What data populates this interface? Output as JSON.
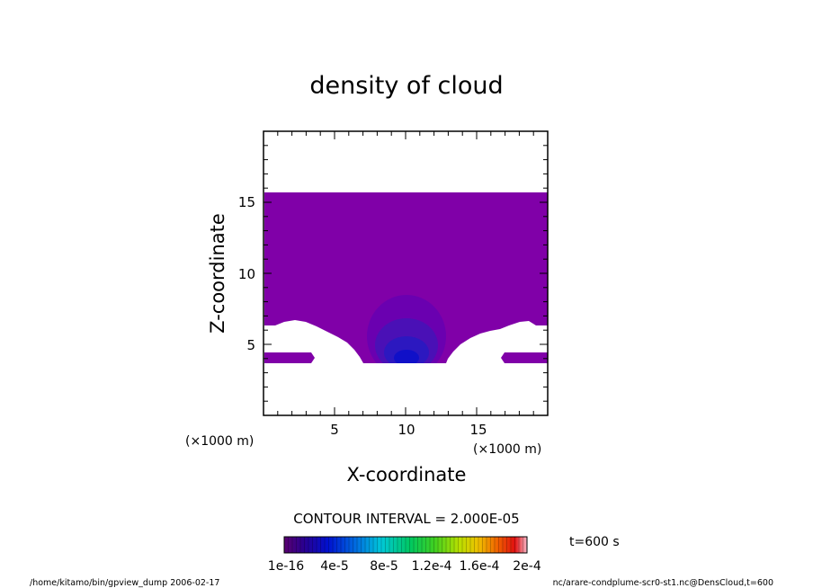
{
  "chart_data": {
    "type": "heatmap",
    "title": "density of cloud",
    "xlabel": "X-coordinate",
    "ylabel": "Z-coordinate",
    "x_unit_note": "(×1000 m)",
    "y_unit_note": "(×1000 m)",
    "xlim": [
      0,
      20
    ],
    "ylim": [
      0,
      20
    ],
    "x_ticks": [
      5,
      10,
      15
    ],
    "y_ticks": [
      5,
      10,
      15
    ],
    "contour_interval": "CONTOUR INTERVAL = 2.000E-05",
    "time_label": "t=600 s",
    "colorbar": {
      "tick_labels": [
        "1e-16",
        "4e-5",
        "8e-5",
        "1.2e-4",
        "1.6e-4",
        "2e-4"
      ],
      "min": 1e-16,
      "max": 0.0002
    },
    "cloud_region": {
      "z_top": 15.6,
      "z_bottom_center": 3.7,
      "x_left_edge_plateau_z": 6.4,
      "dense_core_center": [
        10,
        4.3
      ],
      "base_color": "#8000a8"
    }
  },
  "footer": {
    "left": "/home/kitamo/bin/gpview_dump  2006-02-17",
    "right": "nc/arare-condplume-scr0-st1.nc@DensCloud,t=600"
  }
}
